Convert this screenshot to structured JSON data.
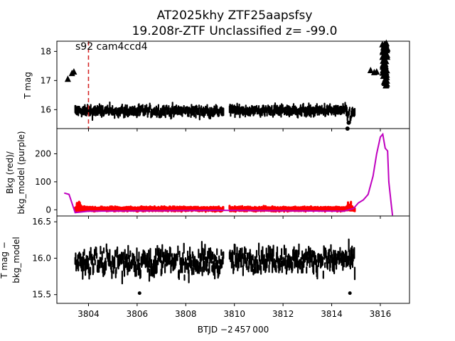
{
  "title_line1": "AT2025khy  ZTF25aapsfsy",
  "title_line2": "19.208r-ZTF Unclassified z= -99.0",
  "xlabel": "BTJD −2 457 000",
  "colors": {
    "mag": "#000000",
    "bkg": "#ff0000",
    "bkg_model": "#bf00bf",
    "marker": "#d62728"
  },
  "chart_data": [
    {
      "type": "scatter",
      "name": "T mag",
      "ylabel": "T mag",
      "annotation": "s92 cam4ccd4",
      "xlim": [
        3802.7,
        3817.2
      ],
      "ylim": [
        18.35,
        15.35
      ],
      "y_inverted": true,
      "yticks": [
        16,
        17,
        18
      ],
      "vline_x": 3804.0,
      "segments": [
        {
          "x": [
            3803.45,
            3809.55
          ],
          "center": 15.95,
          "spread": 0.25
        },
        {
          "x": [
            3809.8,
            3814.6
          ],
          "center": 15.97,
          "spread": 0.22
        },
        {
          "x": [
            3814.6,
            3814.95
          ],
          "center": 15.85,
          "spread": 0.35
        }
      ],
      "triangles": [
        {
          "x": 3803.15,
          "y": 17.05
        },
        {
          "x": 3803.32,
          "y": 17.25
        },
        {
          "x": 3803.4,
          "y": 17.3
        },
        {
          "x": 3815.6,
          "y": 17.35
        },
        {
          "x": 3815.75,
          "y": 17.28
        },
        {
          "x": 3815.85,
          "y": 17.3
        }
      ],
      "rise": {
        "x": [
          3816.0,
          3816.3
        ],
        "y": [
          16.8,
          18.3
        ]
      }
    },
    {
      "type": "line",
      "name": "Background",
      "ylabel_line1": "Bkg (red)/",
      "ylabel_line2": "bkg_model (purple)",
      "xlim": [
        3802.7,
        3817.2
      ],
      "ylim": [
        -22,
        290
      ],
      "yticks": [
        0,
        100,
        200
      ],
      "bkg_red": {
        "x": [
          3803.45,
          3814.95
        ],
        "typical": 3,
        "spikes": [
          {
            "x": 3803.6,
            "y": 22
          },
          {
            "x": 3814.75,
            "y": 25
          }
        ]
      },
      "bkg_model_purple": {
        "x": [
          3803.0,
          3803.2,
          3803.45,
          3804.0,
          3809.5,
          3814.5,
          3814.9,
          3815.1,
          3815.3,
          3815.5,
          3815.7,
          3815.85,
          3816.0,
          3816.1,
          3816.2,
          3816.3,
          3816.35,
          3816.45,
          3816.5
        ],
        "y": [
          60,
          55,
          -10,
          -5,
          -2,
          -5,
          5,
          25,
          35,
          55,
          120,
          200,
          260,
          270,
          220,
          210,
          100,
          20,
          -20
        ]
      }
    },
    {
      "type": "scatter",
      "name": "T mag - bkg_model",
      "ylabel_line1": "T mag −",
      "ylabel_line2": "bkg_model",
      "xlim": [
        3802.7,
        3817.2
      ],
      "ylim": [
        16.58,
        15.38
      ],
      "y_inverted": true,
      "yticks": [
        15.5,
        16.0,
        16.5
      ],
      "segments": [
        {
          "x": [
            3803.45,
            3809.55
          ],
          "center": 15.95,
          "spread": 0.3
        },
        {
          "x": [
            3809.8,
            3814.95
          ],
          "center": 15.98,
          "spread": 0.26
        }
      ]
    }
  ],
  "xticks": [
    "3804",
    "3806",
    "3808",
    "3810",
    "3812",
    "3814",
    "3816"
  ]
}
